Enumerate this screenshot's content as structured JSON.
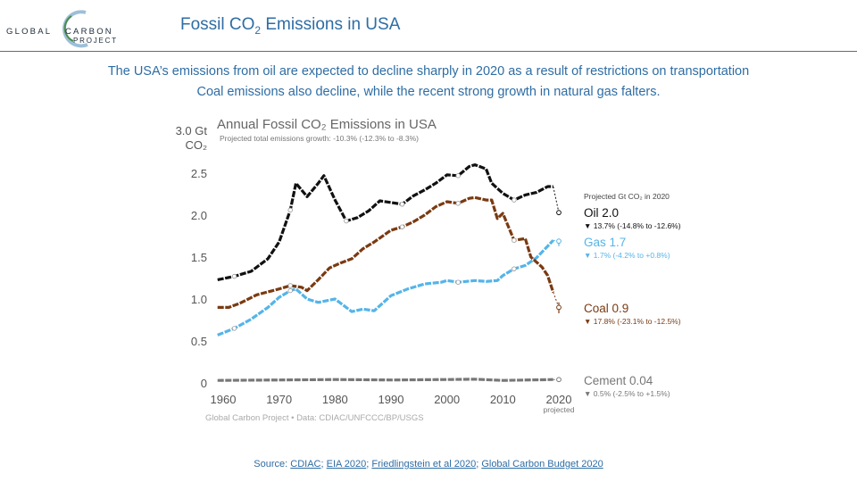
{
  "logo": {
    "word1": "GLOBAL",
    "word2": "CARBON",
    "word3": "PROJECT"
  },
  "header": {
    "title_prefix": "Fossil CO",
    "title_sub": "2",
    "title_suffix": " Emissions in USA"
  },
  "caption": {
    "line1": "The USA’s emissions from oil are expected to decline sharply in 2020 as a result of restrictions on transportation",
    "line2": "Coal emissions also decline, while the recent strong growth in natural gas falters."
  },
  "source": {
    "prefix": "Source: ",
    "links": [
      "CDIAC",
      "EIA 2020",
      "Friedlingstein et al 2020",
      "Global Carbon Budget 2020"
    ],
    "separator": "; "
  },
  "colors": {
    "oil": "#111111",
    "coal": "#7a3a12",
    "gas": "#55b4e8",
    "cement": "#777777",
    "accent": "#2e6da4"
  },
  "chart_data": {
    "type": "line",
    "title": "Annual Fossil CO₂ Emissions in USA",
    "subtitle": "Projected total emissions growth: -10.3% (-12.3% to -8.3%)",
    "ylabel_line1": "3.0 Gt",
    "ylabel_line2": "CO₂",
    "y_ticks": [
      "0",
      "0.5",
      "1.0",
      "1.5",
      "2.0",
      "2.5"
    ],
    "x_ticks": [
      "1960",
      "1970",
      "1980",
      "1990",
      "2000",
      "2010",
      "2020"
    ],
    "x_tick_note": "projected",
    "xlim": [
      1959,
      2020
    ],
    "ylim": [
      0,
      3.0
    ],
    "footer": "Global Carbon Project • Data: CDIAC/UNFCCC/BP/USGS",
    "legend_header": "Projected Gt CO₂ in 2020",
    "series": [
      {
        "name": "Oil",
        "value_label": "2.0",
        "range_label": "▼ 13.7% (-14.8% to -12.6%)",
        "color": "#111111",
        "x": [
          1959,
          1962,
          1965,
          1968,
          1970,
          1972,
          1973,
          1975,
          1977,
          1978,
          1980,
          1982,
          1984,
          1986,
          1988,
          1990,
          1992,
          1994,
          1996,
          1998,
          2000,
          2002,
          2004,
          2005,
          2007,
          2008,
          2010,
          2012,
          2014,
          2016,
          2018,
          2019
        ],
        "y": [
          1.23,
          1.27,
          1.33,
          1.48,
          1.68,
          2.06,
          2.38,
          2.22,
          2.38,
          2.47,
          2.18,
          1.93,
          1.97,
          2.05,
          2.17,
          2.15,
          2.13,
          2.23,
          2.3,
          2.38,
          2.48,
          2.47,
          2.58,
          2.6,
          2.55,
          2.38,
          2.26,
          2.18,
          2.24,
          2.27,
          2.34,
          2.34
        ],
        "projected": 2.03,
        "projected_low": 2.01,
        "projected_high": 2.06
      },
      {
        "name": "Gas",
        "value_label": "1.7",
        "range_label": "▼ 1.7% (-4.2% to +0.8%)",
        "color": "#55b4e8",
        "x": [
          1959,
          1962,
          1965,
          1968,
          1970,
          1972,
          1973,
          1975,
          1977,
          1980,
          1983,
          1985,
          1987,
          1990,
          1993,
          1996,
          1999,
          2000,
          2002,
          2005,
          2007,
          2009,
          2010,
          2012,
          2014,
          2016,
          2018,
          2019
        ],
        "y": [
          0.57,
          0.65,
          0.76,
          0.9,
          1.02,
          1.1,
          1.12,
          1.0,
          0.96,
          1.0,
          0.85,
          0.88,
          0.86,
          1.04,
          1.12,
          1.18,
          1.2,
          1.22,
          1.2,
          1.22,
          1.21,
          1.22,
          1.28,
          1.36,
          1.4,
          1.49,
          1.63,
          1.7
        ],
        "projected": 1.69,
        "projected_low": 1.63,
        "projected_high": 1.71
      },
      {
        "name": "Coal",
        "value_label": "0.9",
        "range_label": "▼ 17.8% (-23.1% to -12.5%)",
        "color": "#7a3a12",
        "x": [
          1959,
          1961,
          1963,
          1966,
          1970,
          1972,
          1974,
          1975,
          1977,
          1979,
          1981,
          1983,
          1985,
          1987,
          1990,
          1992,
          1994,
          1996,
          1998,
          2000,
          2002,
          2004,
          2005,
          2007,
          2008,
          2009,
          2010,
          2012,
          2014,
          2015,
          2017,
          2018,
          2019
        ],
        "y": [
          0.9,
          0.9,
          0.95,
          1.05,
          1.12,
          1.16,
          1.14,
          1.1,
          1.23,
          1.37,
          1.43,
          1.48,
          1.6,
          1.68,
          1.82,
          1.86,
          1.92,
          2.0,
          2.1,
          2.16,
          2.14,
          2.2,
          2.21,
          2.18,
          2.18,
          1.96,
          2.02,
          1.7,
          1.72,
          1.5,
          1.38,
          1.28,
          1.08
        ],
        "projected": 0.9,
        "projected_low": 0.83,
        "projected_high": 0.96
      },
      {
        "name": "Cement",
        "value_label": "0.04",
        "range_label": "▼ 0.5% (-2.5% to +1.5%)",
        "color": "#777777",
        "x": [
          1959,
          1970,
          1980,
          1990,
          2000,
          2005,
          2010,
          2019
        ],
        "y": [
          0.03,
          0.035,
          0.04,
          0.035,
          0.04,
          0.045,
          0.03,
          0.04
        ],
        "projected": 0.04,
        "projected_low": 0.039,
        "projected_high": 0.041
      }
    ]
  }
}
